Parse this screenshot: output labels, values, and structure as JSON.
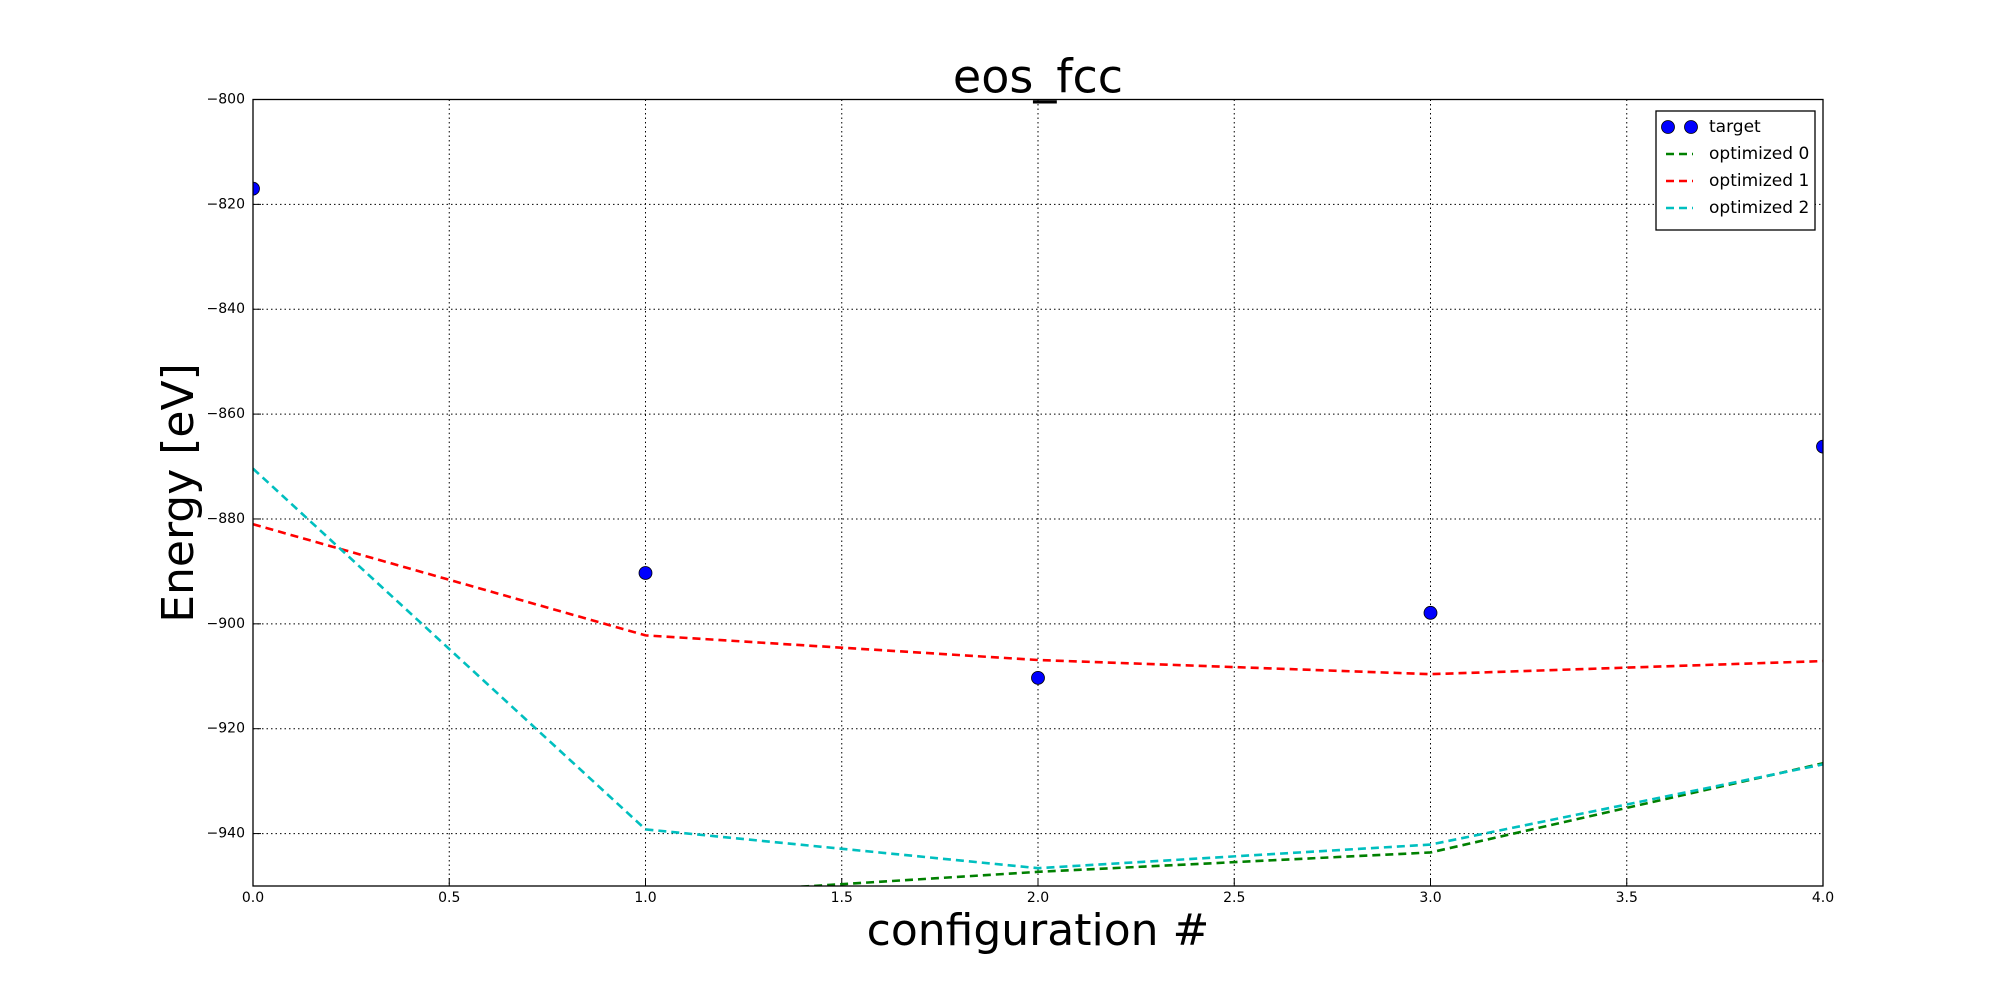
{
  "chart_data": {
    "type": "line",
    "title": "eos_fcc",
    "x_label": "configuration #",
    "y_label": "Energy [eV]",
    "x": [
      0,
      1,
      2,
      3,
      4
    ],
    "series": [
      {
        "name": "target",
        "color": "#0000ff",
        "style": "markers",
        "values": [
          -817,
          -890.3,
          -910.3,
          -897.9,
          -866.2
        ]
      },
      {
        "name": "optimized 0",
        "color": "#008000",
        "style": "dashed",
        "values": [
          null,
          -952,
          -947.3,
          -943.6,
          -926.6
        ]
      },
      {
        "name": "optimized 1",
        "color": "#ff0000",
        "style": "dashed",
        "values": [
          -881,
          -902.2,
          -906.9,
          -909.6,
          -907.1
        ]
      },
      {
        "name": "optimized 2",
        "color": "#00bfbf",
        "style": "dashed",
        "values": [
          -870.4,
          -939.2,
          -946.6,
          -942.1,
          -926.8
        ]
      }
    ],
    "xlim": [
      0,
      4
    ],
    "xticks": [
      {
        "value": 0,
        "label": "0.0"
      },
      {
        "value": 0.5,
        "label": "0.5"
      },
      {
        "value": 1,
        "label": "1.0"
      },
      {
        "value": 1.5,
        "label": "1.5"
      },
      {
        "value": 2,
        "label": "2.0"
      },
      {
        "value": 2.5,
        "label": "2.5"
      },
      {
        "value": 3,
        "label": "3.0"
      },
      {
        "value": 3.5,
        "label": "3.5"
      },
      {
        "value": 4,
        "label": "4.0"
      }
    ],
    "ylim": [
      -950,
      -800
    ],
    "yticks": [
      {
        "value": -800,
        "label": "−800"
      },
      {
        "value": -820,
        "label": "−820"
      },
      {
        "value": -840,
        "label": "−840"
      },
      {
        "value": -860,
        "label": "−860"
      },
      {
        "value": -880,
        "label": "−880"
      },
      {
        "value": -900,
        "label": "−900"
      },
      {
        "value": -920,
        "label": "−920"
      },
      {
        "value": -940,
        "label": "−940"
      }
    ],
    "grid": true,
    "legend": "upper right"
  }
}
